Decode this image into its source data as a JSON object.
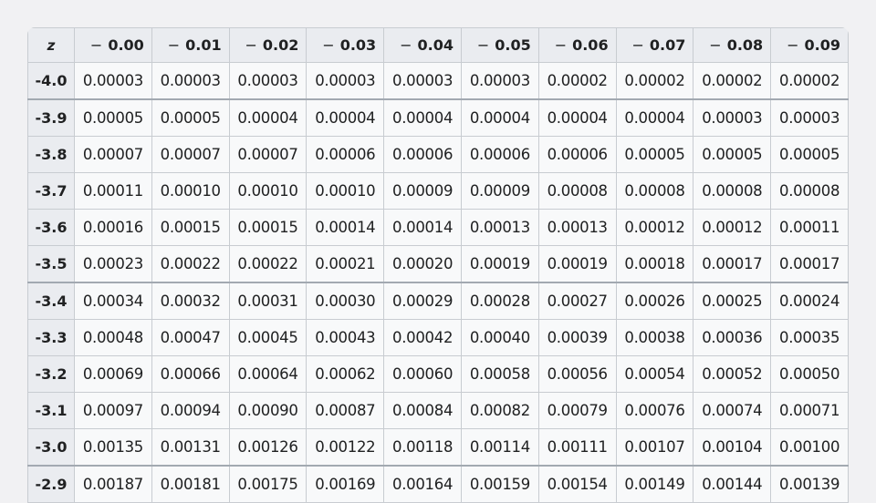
{
  "header": {
    "z_label": "z",
    "columns": [
      {
        "sign": "−",
        "value": "0.00"
      },
      {
        "sign": "−",
        "value": "0.01"
      },
      {
        "sign": "−",
        "value": "0.02"
      },
      {
        "sign": "−",
        "value": "0.03"
      },
      {
        "sign": "−",
        "value": "0.04"
      },
      {
        "sign": "−",
        "value": "0.05"
      },
      {
        "sign": "−",
        "value": "0.06"
      },
      {
        "sign": "−",
        "value": "0.07"
      },
      {
        "sign": "−",
        "value": "0.08"
      },
      {
        "sign": "−",
        "value": "0.09"
      }
    ]
  },
  "rows": [
    {
      "z": "-4.0",
      "values": [
        "0.00003",
        "0.00003",
        "0.00003",
        "0.00003",
        "0.00003",
        "0.00003",
        "0.00002",
        "0.00002",
        "0.00002",
        "0.00002"
      ]
    },
    {
      "z": "-3.9",
      "values": [
        "0.00005",
        "0.00005",
        "0.00004",
        "0.00004",
        "0.00004",
        "0.00004",
        "0.00004",
        "0.00004",
        "0.00003",
        "0.00003"
      ]
    },
    {
      "z": "-3.8",
      "values": [
        "0.00007",
        "0.00007",
        "0.00007",
        "0.00006",
        "0.00006",
        "0.00006",
        "0.00006",
        "0.00005",
        "0.00005",
        "0.00005"
      ]
    },
    {
      "z": "-3.7",
      "values": [
        "0.00011",
        "0.00010",
        "0.00010",
        "0.00010",
        "0.00009",
        "0.00009",
        "0.00008",
        "0.00008",
        "0.00008",
        "0.00008"
      ]
    },
    {
      "z": "-3.6",
      "values": [
        "0.00016",
        "0.00015",
        "0.00015",
        "0.00014",
        "0.00014",
        "0.00013",
        "0.00013",
        "0.00012",
        "0.00012",
        "0.00011"
      ]
    },
    {
      "z": "-3.5",
      "values": [
        "0.00023",
        "0.00022",
        "0.00022",
        "0.00021",
        "0.00020",
        "0.00019",
        "0.00019",
        "0.00018",
        "0.00017",
        "0.00017"
      ]
    },
    {
      "z": "-3.4",
      "values": [
        "0.00034",
        "0.00032",
        "0.00031",
        "0.00030",
        "0.00029",
        "0.00028",
        "0.00027",
        "0.00026",
        "0.00025",
        "0.00024"
      ]
    },
    {
      "z": "-3.3",
      "values": [
        "0.00048",
        "0.00047",
        "0.00045",
        "0.00043",
        "0.00042",
        "0.00040",
        "0.00039",
        "0.00038",
        "0.00036",
        "0.00035"
      ]
    },
    {
      "z": "-3.2",
      "values": [
        "0.00069",
        "0.00066",
        "0.00064",
        "0.00062",
        "0.00060",
        "0.00058",
        "0.00056",
        "0.00054",
        "0.00052",
        "0.00050"
      ]
    },
    {
      "z": "-3.1",
      "values": [
        "0.00097",
        "0.00094",
        "0.00090",
        "0.00087",
        "0.00084",
        "0.00082",
        "0.00079",
        "0.00076",
        "0.00074",
        "0.00071"
      ]
    },
    {
      "z": "-3.0",
      "values": [
        "0.00135",
        "0.00131",
        "0.00126",
        "0.00122",
        "0.00118",
        "0.00114",
        "0.00111",
        "0.00107",
        "0.00104",
        "0.00100"
      ]
    },
    {
      "z": "-2.9",
      "values": [
        "0.00187",
        "0.00181",
        "0.00175",
        "0.00169",
        "0.00164",
        "0.00159",
        "0.00154",
        "0.00149",
        "0.00144",
        "0.00139"
      ]
    }
  ]
}
